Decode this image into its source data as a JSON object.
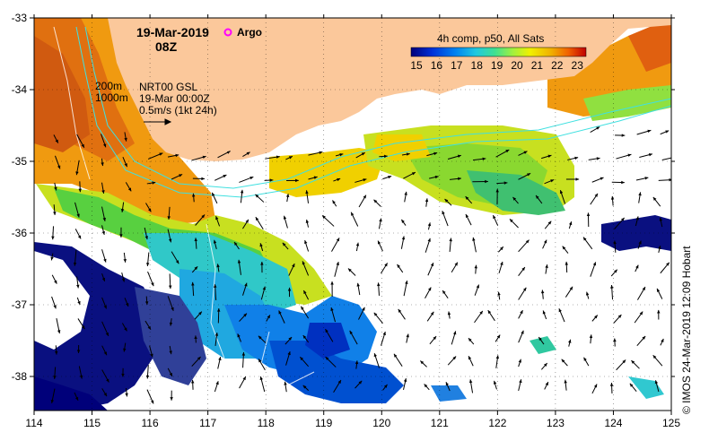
{
  "title": {
    "date": "19-Mar-2019",
    "hour": "08Z",
    "argo_label": "Argo",
    "argo_color": "#ff00ff"
  },
  "info": {
    "depth_200": "200m",
    "depth_1000": "1000m",
    "model": "NRT00 GSL",
    "model_date": "19-Mar 00:00Z",
    "scale_text": "0.5m/s (1kt 24h)"
  },
  "colorbar": {
    "title": "4h comp, p50, All Sats",
    "ticks": [
      "15",
      "16",
      "17",
      "18",
      "19",
      "20",
      "21",
      "22",
      "23"
    ],
    "colors": [
      "#00007a",
      "#0030d8",
      "#0080f0",
      "#20c8e0",
      "#40e090",
      "#a0f040",
      "#f0f000",
      "#f0b000",
      "#f06000",
      "#c00000"
    ]
  },
  "axes": {
    "lon_ticks": [
      "114",
      "115",
      "116",
      "117",
      "118",
      "119",
      "120",
      "121",
      "122",
      "123",
      "124",
      "125"
    ],
    "lat_ticks": [
      "-33",
      "-34",
      "-35",
      "-36",
      "-37",
      "-38"
    ]
  },
  "credit": "©  IMOS 24-Mar-2019 12:09 Hobart",
  "colors": {
    "land": "#fbc89b",
    "frame": "#000000",
    "isobath": "#40e0e0"
  }
}
